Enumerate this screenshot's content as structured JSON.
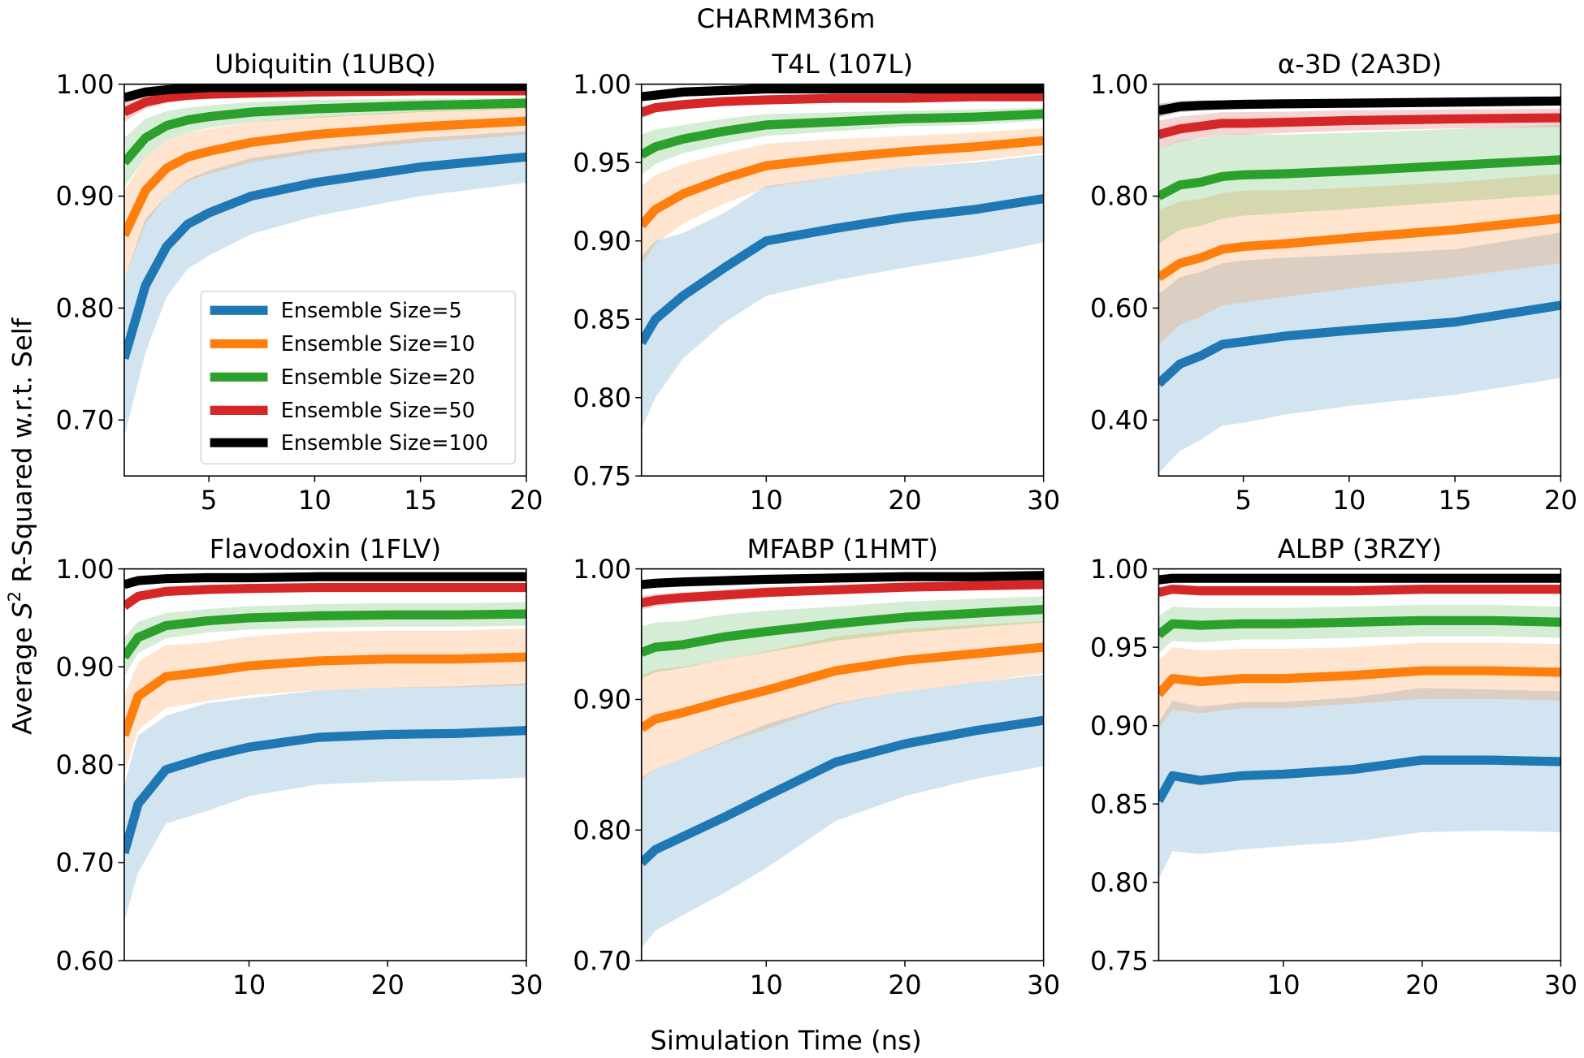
{
  "chart_data": {
    "type": "line",
    "title": "CHARMM36m",
    "xlabel": "Simulation Time (ns)",
    "ylabel": {
      "prefix": "Average ",
      "symbol": "S",
      "sup": "2",
      "suffix": " R-Squared w.r.t. Self"
    },
    "band": "shaded spread around each mean line",
    "legend_placement": "lower-right of first panel",
    "series_styles": [
      {
        "name": "Ensemble Size=5",
        "color": "#1f77b4"
      },
      {
        "name": "Ensemble Size=10",
        "color": "#ff7f0e"
      },
      {
        "name": "Ensemble Size=20",
        "color": "#2ca02c"
      },
      {
        "name": "Ensemble Size=50",
        "color": "#d62728"
      },
      {
        "name": "Ensemble Size=100",
        "color": "#000000"
      }
    ],
    "panels": [
      {
        "title": "Ubiquitin (1UBQ)",
        "xlim": [
          1,
          20
        ],
        "ylim": [
          0.65,
          1.0
        ],
        "xticks": [
          5,
          10,
          15,
          20
        ],
        "yticks": [
          "0.70",
          "0.80",
          "0.90",
          "1.00"
        ],
        "x": [
          1,
          2,
          3,
          4,
          5,
          7,
          10,
          15,
          20
        ],
        "series": [
          {
            "mean": [
              0.755,
              0.82,
              0.855,
              0.875,
              0.885,
              0.9,
              0.912,
              0.926,
              0.935
            ],
            "spread": [
              0.07,
              0.06,
              0.045,
              0.04,
              0.038,
              0.034,
              0.03,
              0.026,
              0.023
            ]
          },
          {
            "mean": [
              0.865,
              0.905,
              0.925,
              0.935,
              0.94,
              0.948,
              0.955,
              0.962,
              0.967
            ],
            "spread": [
              0.04,
              0.03,
              0.025,
              0.022,
              0.02,
              0.018,
              0.016,
              0.014,
              0.012
            ]
          },
          {
            "mean": [
              0.93,
              0.952,
              0.963,
              0.968,
              0.971,
              0.975,
              0.978,
              0.981,
              0.983
            ],
            "spread": [
              0.022,
              0.017,
              0.013,
              0.011,
              0.01,
              0.009,
              0.008,
              0.006,
              0.005
            ]
          },
          {
            "mean": [
              0.975,
              0.984,
              0.988,
              0.99,
              0.991,
              0.992,
              0.993,
              0.994,
              0.994
            ],
            "spread": [
              0.009,
              0.006,
              0.005,
              0.004,
              0.0035,
              0.003,
              0.003,
              0.0025,
              0.002
            ]
          },
          {
            "mean": [
              0.988,
              0.993,
              0.995,
              0.996,
              0.997,
              0.997,
              0.998,
              0.998,
              0.998
            ],
            "spread": [
              0.004,
              0.003,
              0.002,
              0.002,
              0.0015,
              0.0015,
              0.0015,
              0.0012,
              0.001
            ]
          }
        ]
      },
      {
        "title": "T4L (107L)",
        "xlim": [
          1,
          30
        ],
        "ylim": [
          0.75,
          1.0
        ],
        "xticks": [
          10,
          20,
          30
        ],
        "yticks": [
          "0.75",
          "0.80",
          "0.85",
          "0.90",
          "0.95",
          "1.00"
        ],
        "x": [
          1,
          2,
          4,
          7,
          10,
          15,
          20,
          25,
          30
        ],
        "series": [
          {
            "mean": [
              0.835,
              0.85,
              0.865,
              0.883,
              0.9,
              0.908,
              0.915,
              0.92,
              0.927
            ],
            "spread": [
              0.055,
              0.05,
              0.04,
              0.035,
              0.035,
              0.033,
              0.032,
              0.03,
              0.028
            ]
          },
          {
            "mean": [
              0.91,
              0.92,
              0.93,
              0.94,
              0.948,
              0.953,
              0.957,
              0.96,
              0.964
            ],
            "spread": [
              0.025,
              0.022,
              0.019,
              0.016,
              0.014,
              0.012,
              0.01,
              0.009,
              0.008
            ]
          },
          {
            "mean": [
              0.955,
              0.96,
              0.965,
              0.97,
              0.974,
              0.976,
              0.978,
              0.979,
              0.981
            ],
            "spread": [
              0.013,
              0.011,
              0.009,
              0.008,
              0.007,
              0.006,
              0.005,
              0.005,
              0.004
            ]
          },
          {
            "mean": [
              0.982,
              0.985,
              0.987,
              0.989,
              0.99,
              0.991,
              0.991,
              0.992,
              0.992
            ],
            "spread": [
              0.004,
              0.003,
              0.003,
              0.002,
              0.002,
              0.002,
              0.0015,
              0.0015,
              0.0015
            ]
          },
          {
            "mean": [
              0.992,
              0.993,
              0.995,
              0.996,
              0.997,
              0.997,
              0.997,
              0.997,
              0.997
            ],
            "spread": [
              0.002,
              0.002,
              0.002,
              0.0015,
              0.0015,
              0.0015,
              0.0015,
              0.0015,
              0.0015
            ]
          }
        ]
      },
      {
        "title": "α-3D (2A3D)",
        "xlim": [
          1,
          20
        ],
        "ylim": [
          0.3,
          1.0
        ],
        "xticks": [
          5,
          10,
          15,
          20
        ],
        "yticks": [
          "0.40",
          "0.60",
          "0.80",
          "1.00"
        ],
        "x": [
          1,
          2,
          3,
          4,
          5,
          7,
          10,
          15,
          20
        ],
        "series": [
          {
            "mean": [
              0.465,
              0.5,
              0.515,
              0.535,
              0.54,
              0.55,
              0.56,
              0.575,
              0.605
            ],
            "spread": [
              0.16,
              0.155,
              0.15,
              0.145,
              0.145,
              0.14,
              0.135,
              0.13,
              0.13
            ]
          },
          {
            "mean": [
              0.655,
              0.68,
              0.69,
              0.705,
              0.71,
              0.715,
              0.725,
              0.74,
              0.76
            ],
            "spread": [
              0.12,
              0.11,
              0.105,
              0.1,
              0.1,
              0.095,
              0.09,
              0.085,
              0.08
            ]
          },
          {
            "mean": [
              0.8,
              0.82,
              0.825,
              0.835,
              0.838,
              0.84,
              0.845,
              0.855,
              0.865
            ],
            "spread": [
              0.085,
              0.08,
              0.078,
              0.075,
              0.073,
              0.07,
              0.068,
              0.065,
              0.062
            ]
          },
          {
            "mean": [
              0.91,
              0.92,
              0.925,
              0.93,
              0.93,
              0.932,
              0.935,
              0.938,
              0.94
            ],
            "spread": [
              0.025,
              0.022,
              0.021,
              0.02,
              0.02,
              0.019,
              0.018,
              0.017,
              0.016
            ]
          },
          {
            "mean": [
              0.953,
              0.96,
              0.962,
              0.963,
              0.964,
              0.965,
              0.966,
              0.968,
              0.97
            ],
            "spread": [
              0.012,
              0.01,
              0.009,
              0.008,
              0.008,
              0.008,
              0.008,
              0.007,
              0.007
            ]
          }
        ]
      },
      {
        "title": "Flavodoxin (1FLV)",
        "xlim": [
          1,
          30
        ],
        "ylim": [
          0.6,
          1.0
        ],
        "xticks": [
          10,
          20,
          30
        ],
        "yticks": [
          "0.60",
          "0.70",
          "0.80",
          "0.90",
          "1.00"
        ],
        "x": [
          1,
          2,
          4,
          7,
          10,
          15,
          20,
          25,
          30
        ],
        "series": [
          {
            "mean": [
              0.71,
              0.76,
              0.795,
              0.808,
              0.818,
              0.828,
              0.831,
              0.832,
              0.835
            ],
            "spread": [
              0.07,
              0.07,
              0.055,
              0.055,
              0.05,
              0.048,
              0.048,
              0.048,
              0.048
            ]
          },
          {
            "mean": [
              0.83,
              0.87,
              0.89,
              0.895,
              0.901,
              0.906,
              0.908,
              0.908,
              0.91
            ],
            "spread": [
              0.04,
              0.035,
              0.032,
              0.03,
              0.03,
              0.03,
              0.029,
              0.029,
              0.029
            ]
          },
          {
            "mean": [
              0.91,
              0.93,
              0.942,
              0.947,
              0.95,
              0.952,
              0.953,
              0.953,
              0.954
            ],
            "spread": [
              0.02,
              0.016,
              0.013,
              0.012,
              0.012,
              0.012,
              0.012,
              0.012,
              0.012
            ]
          },
          {
            "mean": [
              0.962,
              0.972,
              0.977,
              0.979,
              0.98,
              0.981,
              0.981,
              0.981,
              0.981
            ],
            "spread": [
              0.005,
              0.004,
              0.003,
              0.003,
              0.003,
              0.003,
              0.003,
              0.003,
              0.003
            ]
          },
          {
            "mean": [
              0.984,
              0.988,
              0.99,
              0.991,
              0.991,
              0.992,
              0.992,
              0.992,
              0.992
            ],
            "spread": [
              0.003,
              0.003,
              0.003,
              0.003,
              0.003,
              0.003,
              0.003,
              0.003,
              0.003
            ]
          }
        ]
      },
      {
        "title": "MFABP (1HMT)",
        "xlim": [
          1,
          30
        ],
        "ylim": [
          0.7,
          1.0
        ],
        "xticks": [
          10,
          20,
          30
        ],
        "yticks": [
          "0.70",
          "0.80",
          "0.90",
          "1.00"
        ],
        "x": [
          1,
          2,
          4,
          7,
          10,
          15,
          20,
          25,
          30
        ],
        "series": [
          {
            "mean": [
              0.775,
              0.785,
              0.795,
              0.81,
              0.826,
              0.852,
              0.866,
              0.876,
              0.884
            ],
            "spread": [
              0.065,
              0.062,
              0.06,
              0.058,
              0.055,
              0.045,
              0.04,
              0.037,
              0.035
            ]
          },
          {
            "mean": [
              0.878,
              0.885,
              0.89,
              0.899,
              0.907,
              0.922,
              0.93,
              0.935,
              0.94
            ],
            "spread": [
              0.04,
              0.038,
              0.035,
              0.032,
              0.03,
              0.026,
              0.024,
              0.022,
              0.02
            ]
          },
          {
            "mean": [
              0.936,
              0.94,
              0.942,
              0.948,
              0.952,
              0.958,
              0.963,
              0.966,
              0.969
            ],
            "spread": [
              0.02,
              0.019,
              0.018,
              0.017,
              0.016,
              0.013,
              0.012,
              0.011,
              0.01
            ]
          },
          {
            "mean": [
              0.974,
              0.976,
              0.978,
              0.98,
              0.982,
              0.984,
              0.986,
              0.987,
              0.988
            ],
            "spread": [
              0.005,
              0.005,
              0.004,
              0.004,
              0.004,
              0.003,
              0.003,
              0.003,
              0.003
            ]
          },
          {
            "mean": [
              0.988,
              0.989,
              0.99,
              0.991,
              0.992,
              0.993,
              0.994,
              0.994,
              0.995
            ],
            "spread": [
              0.002,
              0.002,
              0.002,
              0.002,
              0.002,
              0.002,
              0.002,
              0.002,
              0.002
            ]
          }
        ]
      },
      {
        "title": "ALBP (3RZY)",
        "xlim": [
          1,
          30
        ],
        "ylim": [
          0.75,
          1.0
        ],
        "xticks": [
          10,
          20,
          30
        ],
        "yticks": [
          "0.75",
          "0.80",
          "0.85",
          "0.90",
          "0.95",
          "1.00"
        ],
        "x": [
          1,
          2,
          4,
          7,
          10,
          15,
          20,
          25,
          30
        ],
        "series": [
          {
            "mean": [
              0.852,
              0.868,
              0.865,
              0.868,
              0.869,
              0.872,
              0.878,
              0.878,
              0.877
            ],
            "spread": [
              0.05,
              0.048,
              0.047,
              0.047,
              0.046,
              0.046,
              0.046,
              0.045,
              0.045
            ]
          },
          {
            "mean": [
              0.92,
              0.93,
              0.928,
              0.93,
              0.93,
              0.932,
              0.935,
              0.935,
              0.934
            ],
            "spread": [
              0.022,
              0.02,
              0.02,
              0.019,
              0.019,
              0.018,
              0.018,
              0.018,
              0.018
            ]
          },
          {
            "mean": [
              0.958,
              0.965,
              0.964,
              0.965,
              0.965,
              0.966,
              0.967,
              0.967,
              0.966
            ],
            "spread": [
              0.012,
              0.011,
              0.011,
              0.01,
              0.01,
              0.01,
              0.01,
              0.01,
              0.01
            ]
          },
          {
            "mean": [
              0.985,
              0.987,
              0.986,
              0.986,
              0.986,
              0.986,
              0.987,
              0.987,
              0.987
            ],
            "spread": [
              0.003,
              0.003,
              0.003,
              0.003,
              0.003,
              0.003,
              0.003,
              0.003,
              0.003
            ]
          },
          {
            "mean": [
              0.993,
              0.994,
              0.994,
              0.994,
              0.994,
              0.994,
              0.994,
              0.994,
              0.994
            ],
            "spread": [
              0.002,
              0.002,
              0.002,
              0.002,
              0.002,
              0.002,
              0.002,
              0.002,
              0.002
            ]
          }
        ]
      }
    ]
  }
}
